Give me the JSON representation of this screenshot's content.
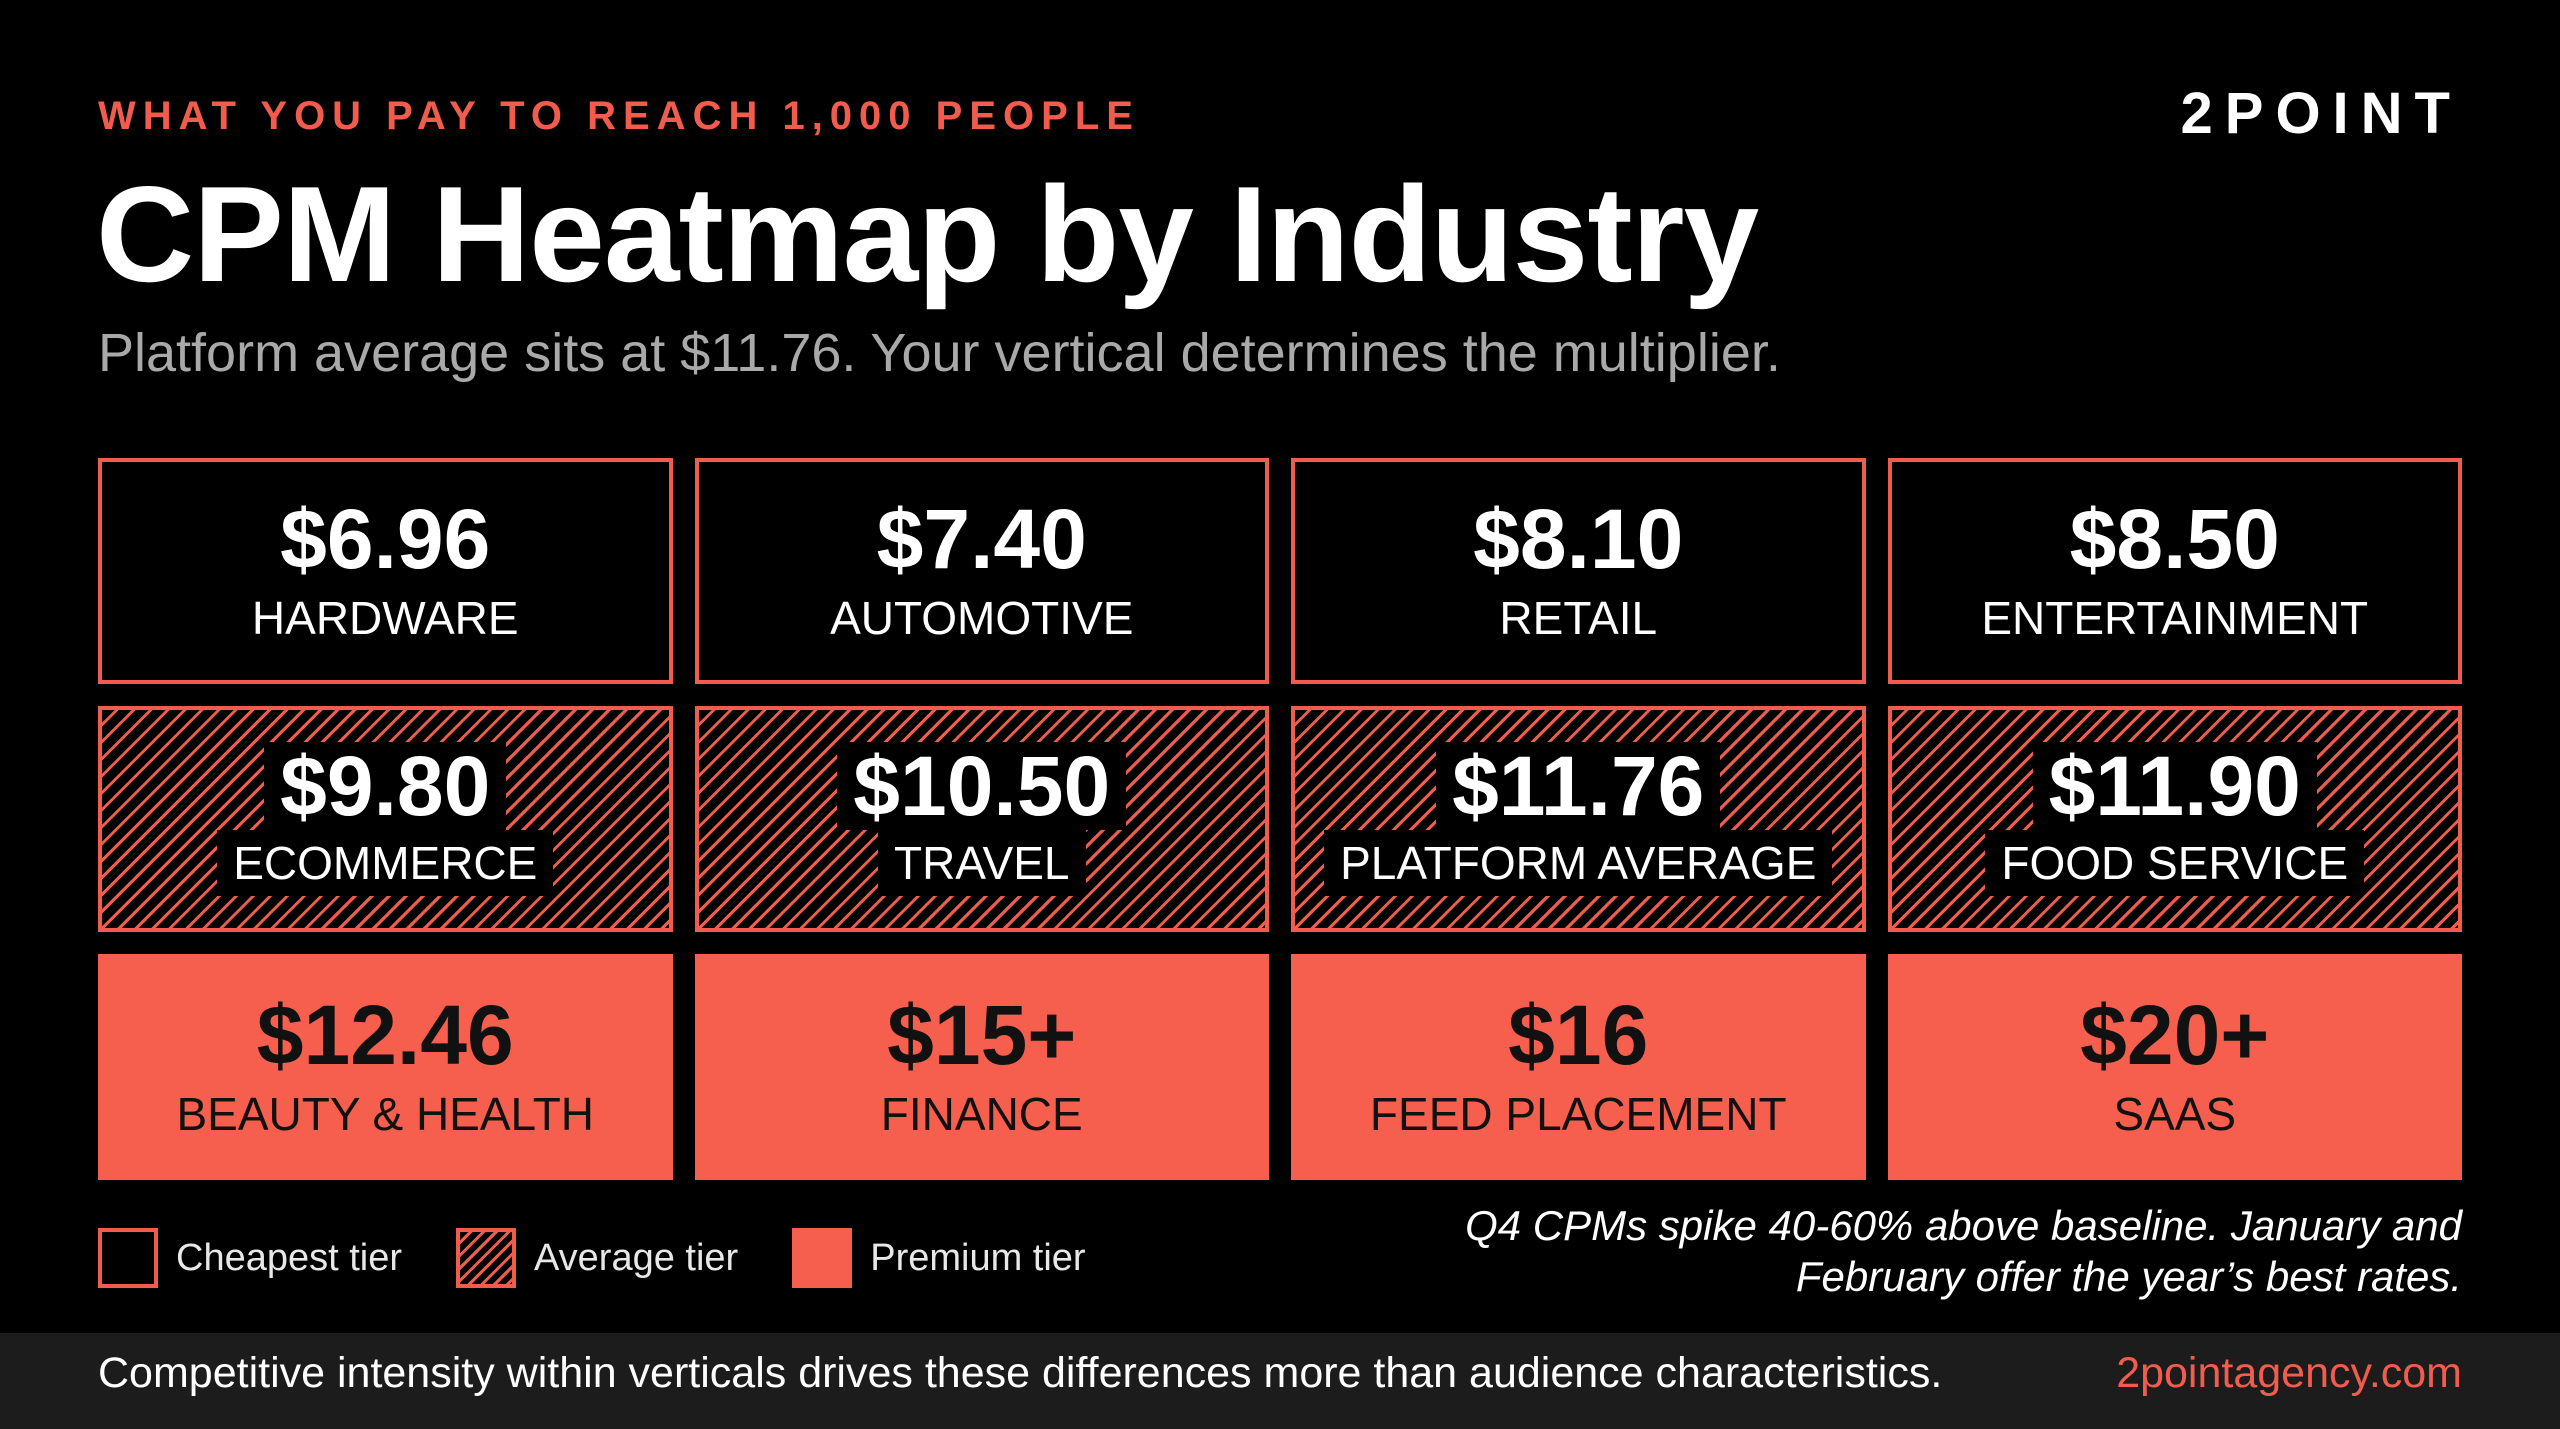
{
  "header": {
    "eyebrow": "WHAT YOU PAY TO REACH 1,000 PEOPLE",
    "brand": "2POINT",
    "title": "CPM Heatmap by Industry",
    "subtitle": "Platform average sits at $11.76. Your vertical determines the multiplier."
  },
  "chart_data": {
    "type": "heatmap",
    "title": "CPM Heatmap by Industry",
    "subtitle": "Platform average sits at $11.76. Your vertical determines the multiplier.",
    "tiers": [
      {
        "name": "Cheapest tier",
        "cells": [
          {
            "value_label": "$6.96",
            "value": 6.96,
            "category": "HARDWARE"
          },
          {
            "value_label": "$7.40",
            "value": 7.4,
            "category": "AUTOMOTIVE"
          },
          {
            "value_label": "$8.10",
            "value": 8.1,
            "category": "RETAIL"
          },
          {
            "value_label": "$8.50",
            "value": 8.5,
            "category": "ENTERTAINMENT"
          }
        ]
      },
      {
        "name": "Average tier",
        "cells": [
          {
            "value_label": "$9.80",
            "value": 9.8,
            "category": "ECOMMERCE"
          },
          {
            "value_label": "$10.50",
            "value": 10.5,
            "category": "TRAVEL"
          },
          {
            "value_label": "$11.76",
            "value": 11.76,
            "category": "PLATFORM AVERAGE"
          },
          {
            "value_label": "$11.90",
            "value": 11.9,
            "category": "FOOD SERVICE"
          }
        ]
      },
      {
        "name": "Premium tier",
        "cells": [
          {
            "value_label": "$12.46",
            "value": 12.46,
            "category": "BEAUTY & HEALTH"
          },
          {
            "value_label": "$15+",
            "value": 15,
            "category": "FINANCE"
          },
          {
            "value_label": "$16",
            "value": 16,
            "category": "FEED PLACEMENT"
          },
          {
            "value_label": "$20+",
            "value": 20,
            "category": "SAAS"
          }
        ]
      }
    ],
    "legend": [
      "Cheapest tier",
      "Average tier",
      "Premium tier"
    ],
    "legend_placement": "bottom-left",
    "colors": {
      "accent": "#f25c4d",
      "premium_fill": "#f65e4e",
      "background": "#000000"
    }
  },
  "note": "Q4 CPMs spike 40-60% above baseline. January and February offer the year’s best rates.",
  "footer": {
    "text": "Competitive intensity within verticals drives these differences more than audience characteristics.",
    "url": "2pointagency.com"
  }
}
